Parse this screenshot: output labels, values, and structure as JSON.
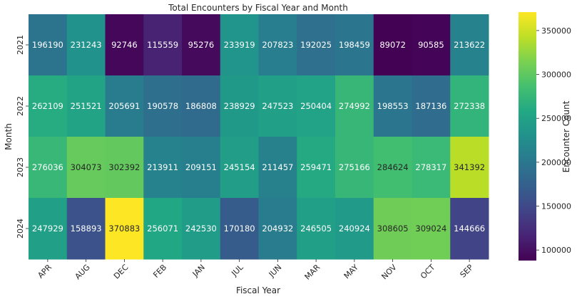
{
  "chart_data": {
    "type": "heatmap",
    "title": "Total Encounters by Fiscal Year and Month",
    "xlabel": "Fiscal Year",
    "ylabel": "Month",
    "colorbar_label": "Encounter Count",
    "colormap": "viridis",
    "vmin": 88000,
    "vmax": 371000,
    "colorbar_ticks": [
      100000,
      150000,
      200000,
      250000,
      300000,
      350000
    ],
    "colorbar_tick_labels": [
      "100000",
      "150000",
      "200000",
      "250000",
      "300000",
      "350000"
    ],
    "x_categories": [
      "APR",
      "AUG",
      "DEC",
      "FEB",
      "JAN",
      "JUL",
      "JUN",
      "MAR",
      "MAY",
      "NOV",
      "OCT",
      "SEP"
    ],
    "y_categories": [
      "2021",
      "2022",
      "2023",
      "2024"
    ],
    "values": [
      [
        196190,
        231243,
        92746,
        115559,
        95276,
        233919,
        207823,
        192025,
        198459,
        89072,
        90585,
        213622
      ],
      [
        262109,
        251521,
        205691,
        190578,
        186808,
        238929,
        247523,
        250404,
        274992,
        198553,
        187136,
        272338
      ],
      [
        276036,
        304073,
        302392,
        213911,
        209151,
        245154,
        211457,
        259471,
        275166,
        284624,
        278317,
        341392
      ],
      [
        247929,
        158893,
        370883,
        256071,
        242530,
        170180,
        204932,
        246505,
        240924,
        308605,
        309024,
        144666
      ]
    ],
    "grid": false,
    "legend": "colorbar-right"
  }
}
